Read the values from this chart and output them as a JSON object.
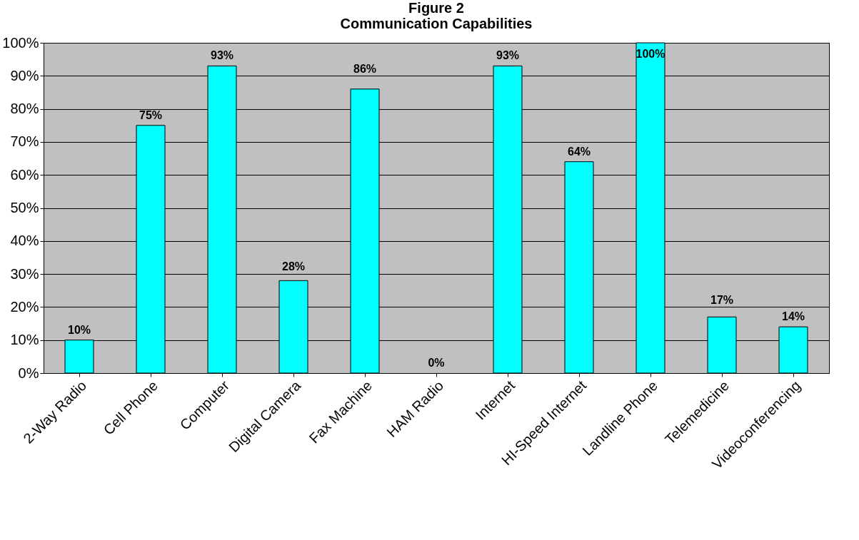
{
  "chart_data": {
    "type": "bar",
    "title": "Figure 2",
    "subtitle": "Communication Capabilities",
    "categories": [
      "2-Way Radio",
      "Cell Phone",
      "Computer",
      "Digital Camera",
      "Fax Machine",
      "HAM Radio",
      "Internet",
      "HI-Speed Internet",
      "Landline Phone",
      "Telemedicine",
      "Videoconferencing"
    ],
    "values": [
      10,
      75,
      93,
      28,
      86,
      0,
      93,
      64,
      100,
      17,
      14
    ],
    "value_labels": [
      "10%",
      "75%",
      "93%",
      "28%",
      "86%",
      "0%",
      "93%",
      "64%",
      "100%",
      "17%",
      "14%"
    ],
    "color": "#00ffff",
    "ylim": [
      0,
      100
    ],
    "yticks": [
      {
        "value": 0,
        "label": "0%"
      },
      {
        "value": 10,
        "label": "10%"
      },
      {
        "value": 20,
        "label": "20%"
      },
      {
        "value": 30,
        "label": "30%"
      },
      {
        "value": 40,
        "label": "40%"
      },
      {
        "value": 50,
        "label": "50%"
      },
      {
        "value": 60,
        "label": "60%"
      },
      {
        "value": 70,
        "label": "70%"
      },
      {
        "value": 80,
        "label": "80%"
      },
      {
        "value": 90,
        "label": "90%"
      },
      {
        "value": 100,
        "label": "100%"
      }
    ],
    "grid": "y"
  }
}
